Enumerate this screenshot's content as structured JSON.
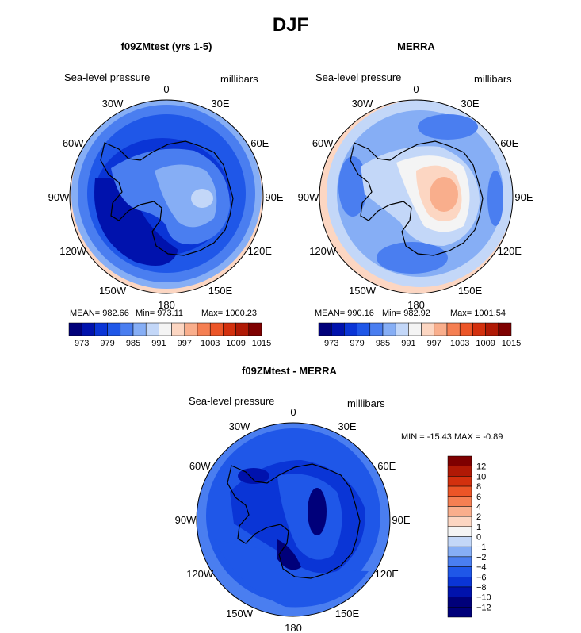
{
  "title": "DJF",
  "panels": [
    {
      "title": "f09ZMtest (yrs 1-5)",
      "variable": "Sea-level pressure",
      "units": "millibars",
      "mean_label": "MEAN= 982.66",
      "min_label": "Min= 973.11",
      "max_label": "Max= 1000.23"
    },
    {
      "title": "MERRA",
      "variable": "Sea-level pressure",
      "units": "millibars",
      "mean_label": "MEAN= 990.16",
      "min_label": "Min= 982.92",
      "max_label": "Max= 1001.54"
    },
    {
      "title": "f09ZMtest - MERRA",
      "variable": "Sea-level pressure",
      "units": "millibars",
      "minmax_label": "MIN = -15.43 MAX =  -0.89"
    }
  ],
  "longitude_labels": [
    "0",
    "30E",
    "60E",
    "90E",
    "120E",
    "150E",
    "180",
    "150W",
    "120W",
    "90W",
    "60W",
    "30W"
  ],
  "chart_data": [
    {
      "type": "heatmap",
      "title": "f09ZMtest (yrs 1-5)",
      "mean": 982.66,
      "min": 973.11,
      "max": 1000.23,
      "colorbar_ticks": [
        "973",
        "979",
        "985",
        "991",
        "997",
        "1003",
        "1009",
        "1015"
      ],
      "colorbar_colors": [
        "#00007a",
        "#0012ad",
        "#0a35d6",
        "#1f57e8",
        "#4a7ef0",
        "#86aef5",
        "#c3d7f8",
        "#f4f4f4",
        "#fcd6c2",
        "#f9ae8c",
        "#f57f52",
        "#ec5527",
        "#d3300e",
        "#b01905",
        "#7e0000"
      ]
    },
    {
      "type": "heatmap",
      "title": "MERRA",
      "mean": 990.16,
      "min": 982.92,
      "max": 1001.54,
      "colorbar_ticks": [
        "973",
        "979",
        "985",
        "991",
        "997",
        "1003",
        "1009",
        "1015"
      ]
    },
    {
      "type": "heatmap",
      "title": "f09ZMtest - MERRA",
      "min": -15.43,
      "max": -0.89,
      "colorbar_ticks": [
        "12",
        "10",
        "8",
        "6",
        "4",
        "2",
        "1",
        "0",
        "−1",
        "−2",
        "−4",
        "−6",
        "−8",
        "−10",
        "−12"
      ],
      "colorbar_colors": [
        "#7e0000",
        "#b01905",
        "#d3300e",
        "#ec5527",
        "#f57f52",
        "#f9ae8c",
        "#fcd6c2",
        "#f4f4f4",
        "#c3d7f8",
        "#86aef5",
        "#4a7ef0",
        "#1f57e8",
        "#0a35d6",
        "#0012ad",
        "#00007a",
        "#00007a"
      ]
    }
  ]
}
